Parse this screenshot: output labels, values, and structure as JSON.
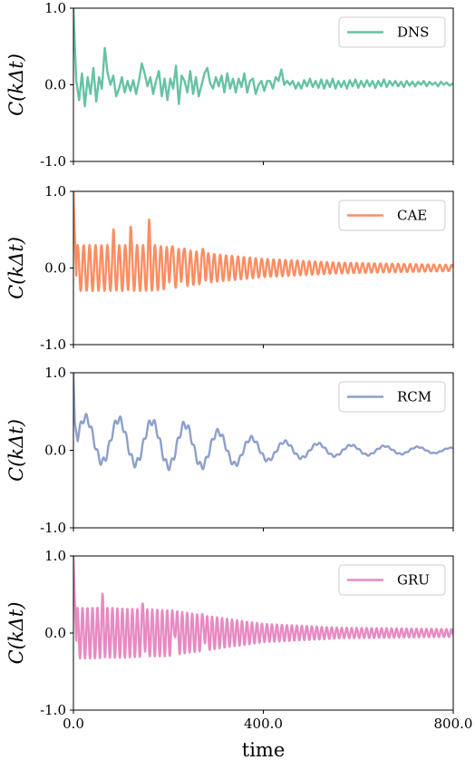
{
  "chart_data": {
    "type": "line",
    "xlabel": "time",
    "xlim": [
      0,
      800
    ],
    "x_ticks": [
      "0.0",
      "400.0",
      "800.0"
    ],
    "ylabel": "C(kΔt)",
    "ylim": [
      -1.0,
      1.0
    ],
    "y_ticks": [
      "1.0",
      "0.0",
      "-1.0"
    ],
    "legend_position": "top-right",
    "grid": false,
    "series": [
      {
        "name": "DNS",
        "color": "#66c2a5",
        "points": [
          [
            0,
            1.0
          ],
          [
            3,
            0.5
          ],
          [
            6,
            0.05
          ],
          [
            12,
            -0.2
          ],
          [
            18,
            0.15
          ],
          [
            24,
            -0.28
          ],
          [
            30,
            0.1
          ],
          [
            36,
            -0.12
          ],
          [
            42,
            0.22
          ],
          [
            48,
            -0.22
          ],
          [
            54,
            0.1
          ],
          [
            60,
            -0.05
          ],
          [
            66,
            0.48
          ],
          [
            72,
            0.15
          ],
          [
            78,
            0.0
          ],
          [
            84,
            0.12
          ],
          [
            90,
            -0.15
          ],
          [
            96,
            -0.05
          ],
          [
            102,
            0.1
          ],
          [
            108,
            -0.1
          ],
          [
            114,
            0.05
          ],
          [
            120,
            -0.08
          ],
          [
            126,
            0.06
          ],
          [
            132,
            -0.12
          ],
          [
            138,
            0.05
          ],
          [
            144,
            0.28
          ],
          [
            150,
            0.15
          ],
          [
            156,
            -0.02
          ],
          [
            162,
            0.1
          ],
          [
            168,
            -0.12
          ],
          [
            174,
            0.05
          ],
          [
            180,
            0.18
          ],
          [
            186,
            -0.15
          ],
          [
            192,
            0.08
          ],
          [
            198,
            -0.2
          ],
          [
            204,
            0.08
          ],
          [
            210,
            -0.05
          ],
          [
            216,
            0.25
          ],
          [
            222,
            -0.25
          ],
          [
            228,
            0.12
          ],
          [
            234,
            0.05
          ],
          [
            240,
            -0.1
          ],
          [
            246,
            0.18
          ],
          [
            252,
            -0.12
          ],
          [
            258,
            0.1
          ],
          [
            264,
            -0.15
          ],
          [
            270,
            0.0
          ],
          [
            276,
            0.15
          ],
          [
            282,
            0.22
          ],
          [
            288,
            0.02
          ],
          [
            294,
            -0.05
          ],
          [
            300,
            0.1
          ],
          [
            306,
            -0.02
          ],
          [
            312,
            0.12
          ],
          [
            318,
            -0.1
          ],
          [
            324,
            0.15
          ],
          [
            330,
            -0.05
          ],
          [
            336,
            0.08
          ],
          [
            342,
            -0.1
          ],
          [
            348,
            0.08
          ],
          [
            354,
            -0.03
          ],
          [
            360,
            0.15
          ],
          [
            366,
            -0.1
          ],
          [
            372,
            0.05
          ],
          [
            378,
            0.08
          ],
          [
            384,
            -0.12
          ],
          [
            390,
            0.0
          ],
          [
            396,
            0.05
          ],
          [
            402,
            -0.08
          ],
          [
            408,
            0.05
          ],
          [
            414,
            0.05
          ],
          [
            420,
            -0.05
          ],
          [
            426,
            0.1
          ],
          [
            432,
            0.05
          ],
          [
            438,
            0.2
          ],
          [
            444,
            0.0
          ],
          [
            450,
            0.05
          ],
          [
            456,
            0.0
          ],
          [
            462,
            0.05
          ],
          [
            468,
            -0.05
          ],
          [
            474,
            0.03
          ],
          [
            480,
            -0.05
          ],
          [
            486,
            0.06
          ],
          [
            492,
            -0.02
          ],
          [
            498,
            0.08
          ],
          [
            504,
            -0.03
          ],
          [
            510,
            0.05
          ],
          [
            516,
            -0.04
          ],
          [
            522,
            0.07
          ],
          [
            528,
            -0.05
          ],
          [
            534,
            0.06
          ],
          [
            540,
            -0.03
          ],
          [
            546,
            0.08
          ],
          [
            552,
            -0.05
          ],
          [
            558,
            0.05
          ],
          [
            564,
            -0.03
          ],
          [
            570,
            0.05
          ],
          [
            576,
            -0.05
          ],
          [
            582,
            0.06
          ],
          [
            588,
            -0.02
          ],
          [
            594,
            0.07
          ],
          [
            600,
            -0.04
          ],
          [
            606,
            0.05
          ],
          [
            612,
            -0.03
          ],
          [
            618,
            0.06
          ],
          [
            624,
            -0.02
          ],
          [
            630,
            0.05
          ],
          [
            636,
            -0.04
          ],
          [
            642,
            0.05
          ],
          [
            648,
            -0.02
          ],
          [
            654,
            0.07
          ],
          [
            660,
            -0.03
          ],
          [
            666,
            0.05
          ],
          [
            672,
            -0.01
          ],
          [
            678,
            0.05
          ],
          [
            684,
            -0.02
          ],
          [
            690,
            0.04
          ],
          [
            696,
            -0.03
          ],
          [
            702,
            0.05
          ],
          [
            708,
            -0.01
          ],
          [
            714,
            0.04
          ],
          [
            720,
            -0.02
          ],
          [
            726,
            0.04
          ],
          [
            732,
            0.0
          ],
          [
            738,
            0.05
          ],
          [
            744,
            -0.02
          ],
          [
            750,
            0.04
          ],
          [
            756,
            0.0
          ],
          [
            762,
            0.03
          ],
          [
            768,
            -0.02
          ],
          [
            774,
            0.04
          ],
          [
            780,
            0.0
          ],
          [
            786,
            0.03
          ],
          [
            792,
            -0.01
          ],
          [
            800,
            0.02
          ]
        ]
      },
      {
        "name": "CAE",
        "color": "#fc8d62",
        "period": 12.5,
        "amp": [
          [
            0,
            0.3
          ],
          [
            60,
            0.3
          ],
          [
            170,
            0.3
          ],
          [
            300,
            0.18
          ],
          [
            400,
            0.12
          ],
          [
            560,
            0.07
          ],
          [
            800,
            0.04
          ]
        ],
        "offset": [
          [
            0,
            0.0
          ],
          [
            300,
            0.0
          ],
          [
            800,
            0.0
          ]
        ],
        "spikes": [
          [
            85,
            0.22
          ],
          [
            120,
            0.3
          ],
          [
            160,
            0.35
          ],
          [
            205,
            0.25
          ],
          [
            230,
            0.18
          ],
          [
            275,
            0.18
          ]
        ],
        "start_points": [
          [
            0,
            1.0
          ],
          [
            3,
            0.4
          ],
          [
            6,
            -0.1
          ]
        ]
      },
      {
        "name": "RCM",
        "color": "#8da0cb",
        "period": 70,
        "amp": [
          [
            0,
            0.28
          ],
          [
            230,
            0.28
          ],
          [
            420,
            0.12
          ],
          [
            560,
            0.07
          ],
          [
            800,
            0.03
          ]
        ],
        "offset": [
          [
            0,
            0.15
          ],
          [
            150,
            0.1
          ],
          [
            350,
            0.0
          ],
          [
            800,
            0.0
          ]
        ],
        "ripple": 0.05,
        "ripple_period": 12,
        "start_points": [
          [
            0,
            1.0
          ],
          [
            3,
            0.35
          ],
          [
            8,
            0.15
          ]
        ]
      },
      {
        "name": "GRU",
        "color": "#e78ac3",
        "period": 10.5,
        "amp": [
          [
            0,
            0.33
          ],
          [
            60,
            0.33
          ],
          [
            200,
            0.3
          ],
          [
            330,
            0.18
          ],
          [
            400,
            0.12
          ],
          [
            560,
            0.07
          ],
          [
            800,
            0.05
          ]
        ],
        "offset": [
          [
            0,
            0.0
          ],
          [
            800,
            0.0
          ]
        ],
        "spikes": [
          [
            62,
            0.2
          ],
          [
            148,
            0.22
          ],
          [
            213,
            0.25
          ],
          [
            275,
            0.15
          ]
        ],
        "start_points": [
          [
            0,
            1.0
          ],
          [
            3,
            0.4
          ],
          [
            6,
            -0.1
          ]
        ]
      }
    ]
  }
}
